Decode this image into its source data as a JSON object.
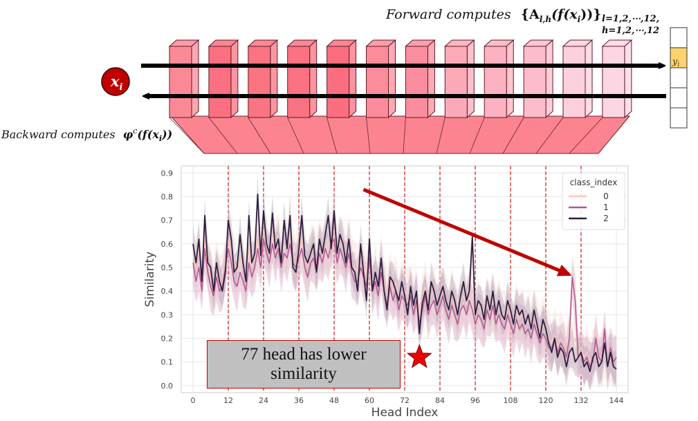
{
  "diagram": {
    "input_label": "x",
    "input_subscript": "i",
    "output_label": "y",
    "output_subscript": "i",
    "forward_text": "Forward computes",
    "forward_formula": "{A",
    "forward_formula_sub": "l,h",
    "forward_formula_rest": "(f(x",
    "forward_formula_rest_sub": "i",
    "forward_formula_close": "))}",
    "forward_index_l": "l=1,2,⋯,12,",
    "forward_index_h": "h=1,2,⋯,12",
    "backward_text": "Backward computes",
    "backward_formula": "φ",
    "backward_formula_sup": "c",
    "backward_formula_rest": "(f(x",
    "backward_formula_rest_sub": "i",
    "backward_formula_close": "))",
    "layer_colors": [
      "#fb8a96",
      "#fb7080",
      "#fb7482",
      "#fb7282",
      "#fb6e80",
      "#fc8c9a",
      "#fb8e9e",
      "#fcaab8",
      "#fcb2c0",
      "#fcbccb",
      "#fdd0de",
      "#fdd6e4"
    ],
    "output_highlight_index": 1,
    "output_highlight_color": "#fdd36b"
  },
  "chart_data": {
    "type": "line",
    "xlabel": "Head Index",
    "ylabel": "Similarity",
    "xticks": [
      0,
      12,
      24,
      36,
      48,
      60,
      72,
      84,
      96,
      108,
      120,
      132,
      144
    ],
    "yticks": [
      0.0,
      0.1,
      0.2,
      0.3,
      0.4,
      0.5,
      0.6,
      0.7,
      0.8,
      0.9
    ],
    "ytick_labels": [
      "0.0",
      "0.1",
      "0.2",
      "0.3",
      "0.4",
      "0.5",
      "0.6",
      "0.7",
      "0.8",
      "0.9"
    ],
    "xlim": [
      -4,
      148
    ],
    "ylim": [
      -0.03,
      0.93
    ],
    "grid": true,
    "legend_title": "class_index",
    "legend_position": "top-right",
    "layer_boundaries": [
      12,
      24,
      36,
      48,
      60,
      72,
      84,
      96,
      108,
      120,
      132
    ],
    "series": [
      {
        "name": "0",
        "color": "#f3c9b9",
        "band": "#f6ddd4",
        "values": [
          0.56,
          0.49,
          0.58,
          0.44,
          0.62,
          0.52,
          0.47,
          0.42,
          0.5,
          0.46,
          0.44,
          0.53,
          0.62,
          0.58,
          0.52,
          0.48,
          0.55,
          0.5,
          0.44,
          0.58,
          0.5,
          0.56,
          0.62,
          0.55,
          0.66,
          0.6,
          0.56,
          0.64,
          0.58,
          0.62,
          0.55,
          0.6,
          0.58,
          0.65,
          0.56,
          0.54,
          0.58,
          0.62,
          0.55,
          0.5,
          0.56,
          0.58,
          0.52,
          0.6,
          0.56,
          0.62,
          0.58,
          0.64,
          0.66,
          0.56,
          0.62,
          0.58,
          0.54,
          0.6,
          0.52,
          0.5,
          0.48,
          0.54,
          0.5,
          0.46,
          0.58,
          0.44,
          0.48,
          0.42,
          0.52,
          0.44,
          0.38,
          0.46,
          0.4,
          0.44,
          0.36,
          0.42,
          0.4,
          0.38,
          0.42,
          0.34,
          0.4,
          0.3,
          0.36,
          0.42,
          0.34,
          0.38,
          0.4,
          0.34,
          0.38,
          0.42,
          0.36,
          0.32,
          0.38,
          0.34,
          0.3,
          0.36,
          0.38,
          0.34,
          0.4,
          0.36,
          0.3,
          0.34,
          0.32,
          0.28,
          0.36,
          0.32,
          0.38,
          0.3,
          0.34,
          0.3,
          0.28,
          0.34,
          0.3,
          0.26,
          0.32,
          0.28,
          0.3,
          0.26,
          0.28,
          0.24,
          0.3,
          0.26,
          0.22,
          0.26,
          0.24,
          0.2,
          0.18,
          0.22,
          0.16,
          0.2,
          0.18,
          0.14,
          0.18,
          0.16,
          0.2,
          0.14,
          0.16,
          0.12,
          0.14,
          0.1,
          0.12,
          0.16,
          0.1,
          0.12,
          0.14,
          0.1,
          0.12,
          0.1,
          0.12
        ]
      },
      {
        "name": "1",
        "color": "#b5558a",
        "band": "#d9a8c4",
        "values": [
          0.52,
          0.44,
          0.5,
          0.4,
          0.58,
          0.48,
          0.42,
          0.38,
          0.46,
          0.4,
          0.42,
          0.5,
          0.58,
          0.52,
          0.44,
          0.42,
          0.48,
          0.44,
          0.4,
          0.52,
          0.46,
          0.5,
          0.58,
          0.5,
          0.62,
          0.56,
          0.52,
          0.6,
          0.54,
          0.58,
          0.5,
          0.56,
          0.54,
          0.6,
          0.52,
          0.5,
          0.54,
          0.58,
          0.5,
          0.46,
          0.52,
          0.54,
          0.48,
          0.56,
          0.52,
          0.58,
          0.54,
          0.6,
          0.62,
          0.52,
          0.58,
          0.54,
          0.5,
          0.56,
          0.48,
          0.44,
          0.44,
          0.5,
          0.46,
          0.42,
          0.54,
          0.4,
          0.44,
          0.38,
          0.48,
          0.4,
          0.34,
          0.42,
          0.36,
          0.4,
          0.32,
          0.38,
          0.36,
          0.34,
          0.38,
          0.3,
          0.36,
          0.26,
          0.32,
          0.38,
          0.3,
          0.34,
          0.36,
          0.3,
          0.34,
          0.38,
          0.32,
          0.28,
          0.34,
          0.3,
          0.26,
          0.32,
          0.34,
          0.3,
          0.36,
          0.32,
          0.26,
          0.3,
          0.28,
          0.24,
          0.32,
          0.28,
          0.34,
          0.26,
          0.3,
          0.26,
          0.24,
          0.3,
          0.26,
          0.22,
          0.28,
          0.24,
          0.26,
          0.22,
          0.24,
          0.2,
          0.26,
          0.22,
          0.18,
          0.22,
          0.2,
          0.16,
          0.16,
          0.2,
          0.14,
          0.18,
          0.16,
          0.12,
          0.2,
          0.46,
          0.36,
          0.12,
          0.14,
          0.1,
          0.12,
          0.08,
          0.1,
          0.2,
          0.12,
          0.1,
          0.24,
          0.08,
          0.16,
          0.1,
          0.12
        ]
      },
      {
        "name": "2",
        "color": "#2d1e3e",
        "band": "#b8a8bc",
        "values": [
          0.6,
          0.52,
          0.62,
          0.44,
          0.72,
          0.52,
          0.5,
          0.4,
          0.52,
          0.44,
          0.4,
          0.48,
          0.7,
          0.62,
          0.48,
          0.5,
          0.64,
          0.52,
          0.44,
          0.72,
          0.52,
          0.56,
          0.81,
          0.55,
          0.74,
          0.6,
          0.56,
          0.73,
          0.58,
          0.62,
          0.52,
          0.7,
          0.58,
          0.72,
          0.5,
          0.48,
          0.58,
          0.72,
          0.55,
          0.52,
          0.56,
          0.6,
          0.48,
          0.62,
          0.56,
          0.64,
          0.72,
          0.58,
          0.74,
          0.56,
          0.64,
          0.6,
          0.52,
          0.62,
          0.5,
          0.48,
          0.4,
          0.6,
          0.48,
          0.36,
          0.62,
          0.4,
          0.48,
          0.42,
          0.54,
          0.4,
          0.32,
          0.46,
          0.44,
          0.4,
          0.36,
          0.44,
          0.38,
          0.3,
          0.42,
          0.34,
          0.4,
          0.22,
          0.35,
          0.4,
          0.32,
          0.44,
          0.4,
          0.34,
          0.38,
          0.42,
          0.36,
          0.32,
          0.4,
          0.36,
          0.3,
          0.38,
          0.44,
          0.36,
          0.4,
          0.63,
          0.3,
          0.36,
          0.34,
          0.28,
          0.38,
          0.32,
          0.4,
          0.3,
          0.36,
          0.3,
          0.28,
          0.36,
          0.32,
          0.26,
          0.34,
          0.3,
          0.32,
          0.26,
          0.3,
          0.24,
          0.32,
          0.26,
          0.2,
          0.28,
          0.24,
          0.18,
          0.14,
          0.2,
          0.12,
          0.16,
          0.14,
          0.08,
          0.14,
          0.16,
          0.1,
          0.12,
          0.14,
          0.08,
          0.1,
          0.06,
          0.12,
          0.14,
          0.08,
          0.1,
          0.18,
          0.08,
          0.14,
          0.08,
          0.07
        ]
      }
    ]
  },
  "annotation": {
    "note_text": "77 head has lower similarity",
    "star_x": 77,
    "star_y": 0.12,
    "arrow_from": [
      58,
      0.83
    ],
    "arrow_to": [
      128,
      0.47
    ]
  }
}
